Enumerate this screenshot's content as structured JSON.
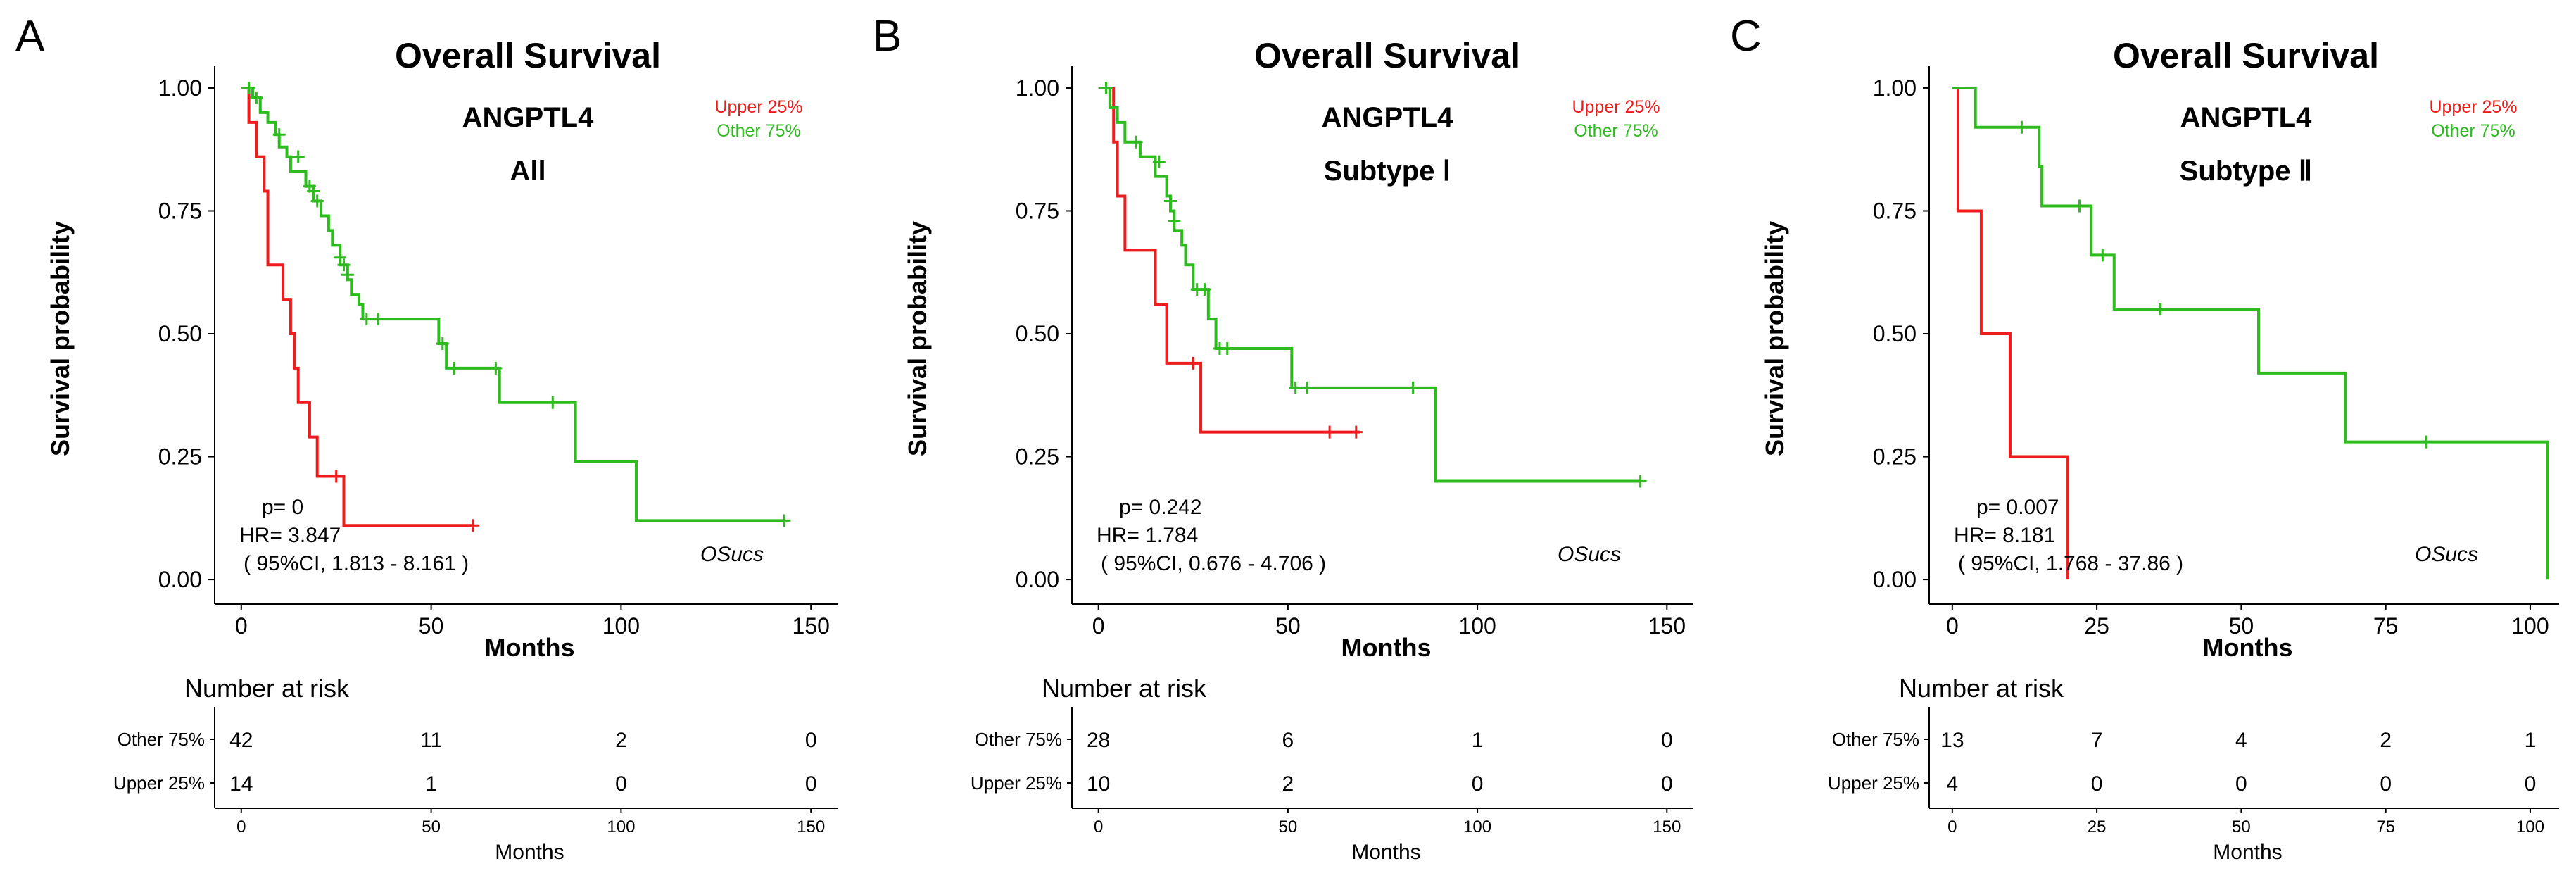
{
  "colors": {
    "upper": "#ee1c1c",
    "other": "#2dbb1e",
    "axis": "#000000",
    "text": "#000000"
  },
  "chart_data": [
    {
      "panel_label": "A",
      "type": "line",
      "title": "Overall Survival",
      "gene": "ANGPTL4",
      "subtitle": "All",
      "xlabel": "Months",
      "ylabel": "Survival probability",
      "xlim": [
        -7,
        157
      ],
      "ylim": [
        -0.05,
        1.03
      ],
      "xticks": [
        0,
        50,
        100,
        150
      ],
      "yticks": [
        0.0,
        0.25,
        0.5,
        0.75,
        1.0
      ],
      "ytick_labels": [
        "0.00",
        "0.25",
        "0.50",
        "0.75",
        "1.00"
      ],
      "legend": [
        "Upper 25%",
        "Other 75%"
      ],
      "stats": {
        "p": "p= 0",
        "hr": "HR= 3.847",
        "ci": "( 95%CI, 1.813 - 8.161 )"
      },
      "annotation": "OSucs",
      "series": [
        {
          "name": "Upper 25%",
          "steps": [
            [
              0,
              1
            ],
            [
              2,
              0.93
            ],
            [
              4,
              0.86
            ],
            [
              6,
              0.79
            ],
            [
              7,
              0.64
            ],
            [
              11,
              0.57
            ],
            [
              13,
              0.5
            ],
            [
              14,
              0.43
            ],
            [
              15,
              0.36
            ],
            [
              18,
              0.29
            ],
            [
              20,
              0.21
            ],
            [
              27,
              0.11
            ],
            [
              61,
              0.11
            ]
          ],
          "censors": [
            [
              25,
              0.21
            ],
            [
              61,
              0.11
            ]
          ]
        },
        {
          "name": "Other 75%",
          "steps": [
            [
              0,
              1
            ],
            [
              3,
              0.98
            ],
            [
              5,
              0.95
            ],
            [
              7,
              0.93
            ],
            [
              9,
              0.905
            ],
            [
              10,
              0.88
            ],
            [
              12,
              0.86
            ],
            [
              13,
              0.83
            ],
            [
              17,
              0.8
            ],
            [
              19,
              0.77
            ],
            [
              21,
              0.74
            ],
            [
              23,
              0.71
            ],
            [
              24,
              0.68
            ],
            [
              26,
              0.64
            ],
            [
              28,
              0.61
            ],
            [
              29,
              0.58
            ],
            [
              31,
              0.56
            ],
            [
              32,
              0.53
            ],
            [
              52,
              0.48
            ],
            [
              54,
              0.43
            ],
            [
              68,
              0.36
            ],
            [
              88,
              0.24
            ],
            [
              104,
              0.12
            ],
            [
              143,
              0.12
            ]
          ],
          "censors": [
            [
              2,
              1
            ],
            [
              4,
              0.98
            ],
            [
              10,
              0.905
            ],
            [
              15,
              0.86
            ],
            [
              18,
              0.8
            ],
            [
              19,
              0.79
            ],
            [
              20,
              0.77
            ],
            [
              26,
              0.655
            ],
            [
              27,
              0.64
            ],
            [
              28,
              0.62
            ],
            [
              33,
              0.53
            ],
            [
              36,
              0.53
            ],
            [
              53,
              0.48
            ],
            [
              56,
              0.43
            ],
            [
              67,
              0.43
            ],
            [
              82,
              0.36
            ],
            [
              143,
              0.12
            ]
          ]
        }
      ],
      "risk_table": {
        "title": "Number at risk",
        "xlabel": "Months",
        "xticks": [
          0,
          50,
          100,
          150
        ],
        "rows": [
          {
            "label": "Other  75%",
            "values": [
              "42",
              "11",
              "2",
              "0"
            ]
          },
          {
            "label": "Upper 25%",
            "values": [
              "14",
              "1",
              "0",
              "0"
            ]
          }
        ]
      }
    },
    {
      "panel_label": "B",
      "type": "line",
      "title": "Overall Survival",
      "gene": "ANGPTL4",
      "subtitle": "Subtype Ⅰ",
      "xlabel": "Months",
      "ylabel": "Survival probability",
      "xlim": [
        -7,
        157
      ],
      "ylim": [
        -0.05,
        1.03
      ],
      "xticks": [
        0,
        50,
        100,
        150
      ],
      "yticks": [
        0.0,
        0.25,
        0.5,
        0.75,
        1.0
      ],
      "ytick_labels": [
        "0.00",
        "0.25",
        "0.50",
        "0.75",
        "1.00"
      ],
      "legend": [
        "Upper 25%",
        "Other 75%"
      ],
      "stats": {
        "p": "p= 0.242",
        "hr": "HR= 1.784",
        "ci": "( 95%CI, 0.676 - 4.706 )"
      },
      "annotation": "OSucs",
      "series": [
        {
          "name": "Upper 25%",
          "steps": [
            [
              0,
              1
            ],
            [
              4,
              0.89
            ],
            [
              5,
              0.78
            ],
            [
              7,
              0.67
            ],
            [
              15,
              0.56
            ],
            [
              18,
              0.44
            ],
            [
              27,
              0.3
            ],
            [
              69,
              0.3
            ]
          ],
          "censors": [
            [
              25,
              0.44
            ],
            [
              61,
              0.3
            ],
            [
              68,
              0.3
            ]
          ]
        },
        {
          "name": "Other 75%",
          "steps": [
            [
              0,
              1
            ],
            [
              3,
              0.96
            ],
            [
              5,
              0.93
            ],
            [
              7,
              0.89
            ],
            [
              11,
              0.86
            ],
            [
              15,
              0.82
            ],
            [
              18,
              0.78
            ],
            [
              19,
              0.75
            ],
            [
              20,
              0.71
            ],
            [
              22,
              0.68
            ],
            [
              23,
              0.64
            ],
            [
              25,
              0.59
            ],
            [
              29,
              0.53
            ],
            [
              31,
              0.47
            ],
            [
              51,
              0.39
            ],
            [
              89,
              0.2
            ],
            [
              143,
              0.2
            ]
          ],
          "censors": [
            [
              2,
              1
            ],
            [
              10,
              0.89
            ],
            [
              16,
              0.85
            ],
            [
              19,
              0.77
            ],
            [
              20,
              0.73
            ],
            [
              26,
              0.59
            ],
            [
              28,
              0.59
            ],
            [
              32,
              0.47
            ],
            [
              34,
              0.47
            ],
            [
              52,
              0.39
            ],
            [
              55,
              0.39
            ],
            [
              83,
              0.39
            ],
            [
              143,
              0.2
            ]
          ]
        }
      ],
      "risk_table": {
        "title": "Number at risk",
        "xlabel": "Months",
        "xticks": [
          0,
          50,
          100,
          150
        ],
        "rows": [
          {
            "label": "Other  75%",
            "values": [
              "28",
              "6",
              "1",
              "0"
            ]
          },
          {
            "label": "Upper 25%",
            "values": [
              "10",
              "2",
              "0",
              "0"
            ]
          }
        ]
      }
    },
    {
      "panel_label": "C",
      "type": "line",
      "title": "Overall Survival",
      "gene": "ANGPTL4",
      "subtitle": "Subtype Ⅱ",
      "xlabel": "Months",
      "ylabel": "Survival probability",
      "xlim": [
        -4,
        105
      ],
      "ylim": [
        -0.05,
        1.03
      ],
      "xticks": [
        0,
        25,
        50,
        75,
        100
      ],
      "yticks": [
        0.0,
        0.25,
        0.5,
        0.75,
        1.0
      ],
      "ytick_labels": [
        "0.00",
        "0.25",
        "0.50",
        "0.75",
        "1.00"
      ],
      "legend": [
        "Upper 25%",
        "Other 75%"
      ],
      "stats": {
        "p": "p= 0.007",
        "hr": "HR= 8.181",
        "ci": "( 95%CI, 1.768 - 37.86 )"
      },
      "annotation": "OSucs",
      "series": [
        {
          "name": "Upper 25%",
          "steps": [
            [
              0,
              1
            ],
            [
              1,
              0.75
            ],
            [
              5,
              0.5
            ],
            [
              10,
              0.25
            ],
            [
              20,
              0.0
            ]
          ],
          "censors": []
        },
        {
          "name": "Other 75%",
          "steps": [
            [
              0,
              1
            ],
            [
              4,
              0.92
            ],
            [
              15,
              0.84
            ],
            [
              15.5,
              0.76
            ],
            [
              24,
              0.66
            ],
            [
              28,
              0.55
            ],
            [
              53,
              0.42
            ],
            [
              68,
              0.28
            ],
            [
              103,
              0.0
            ]
          ],
          "censors": [
            [
              12,
              0.92
            ],
            [
              22,
              0.76
            ],
            [
              26,
              0.66
            ],
            [
              36,
              0.55
            ],
            [
              82,
              0.28
            ]
          ]
        }
      ],
      "risk_table": {
        "title": "Number at risk",
        "xlabel": "Months",
        "xticks": [
          0,
          25,
          50,
          75,
          100
        ],
        "rows": [
          {
            "label": "Other  75%",
            "values": [
              "13",
              "7",
              "4",
              "2",
              "1"
            ]
          },
          {
            "label": "Upper 25%",
            "values": [
              "4",
              "0",
              "0",
              "0",
              "0"
            ]
          }
        ]
      }
    }
  ]
}
